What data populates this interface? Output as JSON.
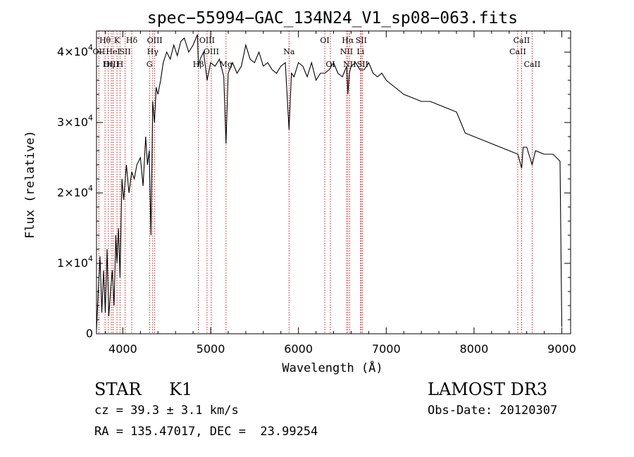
{
  "chart_data": {
    "type": "line",
    "title": "spec−55994−GAC_134N24_V1_sp08−063.fits",
    "xlabel": "Wavelength (Å)",
    "ylabel": "Flux (relative)",
    "xlim": [
      3700,
      9100
    ],
    "ylim": [
      0,
      43000
    ],
    "x_ticks": [
      {
        "value": 4000,
        "label": "4000"
      },
      {
        "value": 5000,
        "label": "5000"
      },
      {
        "value": 6000,
        "label": "6000"
      },
      {
        "value": 7000,
        "label": "7000"
      },
      {
        "value": 8000,
        "label": "8000"
      },
      {
        "value": 9000,
        "label": "9000"
      }
    ],
    "y_ticks": [
      {
        "value": 0,
        "mant": "0",
        "exp": ""
      },
      {
        "value": 10000,
        "mant": "1×10",
        "exp": "4"
      },
      {
        "value": 20000,
        "mant": "2×10",
        "exp": "4"
      },
      {
        "value": 30000,
        "mant": "3×10",
        "exp": "4"
      },
      {
        "value": 40000,
        "mant": "4×10",
        "exp": "4"
      }
    ],
    "series": [
      {
        "name": "flux",
        "x": [
          3700,
          3720,
          3740,
          3760,
          3780,
          3800,
          3820,
          3840,
          3860,
          3880,
          3900,
          3920,
          3933,
          3950,
          3968,
          3990,
          4010,
          4040,
          4070,
          4101,
          4130,
          4160,
          4200,
          4230,
          4260,
          4280,
          4300,
          4320,
          4340,
          4360,
          4380,
          4400,
          4430,
          4460,
          4500,
          4540,
          4580,
          4620,
          4660,
          4700,
          4750,
          4800,
          4850,
          4861,
          4880,
          4920,
          4960,
          5000,
          5050,
          5100,
          5150,
          5175,
          5200,
          5250,
          5300,
          5350,
          5400,
          5450,
          5500,
          5550,
          5600,
          5650,
          5700,
          5750,
          5800,
          5850,
          5893,
          5920,
          5950,
          6000,
          6050,
          6100,
          6150,
          6200,
          6250,
          6300,
          6350,
          6400,
          6450,
          6500,
          6550,
          6563,
          6580,
          6600,
          6650,
          6700,
          6750,
          6800,
          6850,
          6900,
          6950,
          7000,
          7050,
          7100,
          7150,
          7200,
          7300,
          7400,
          7500,
          7600,
          7700,
          7800,
          7850,
          7900,
          8000,
          8100,
          8200,
          8300,
          8400,
          8500,
          8542,
          8560,
          8600,
          8662,
          8700,
          8800,
          8900,
          8980,
          9000
        ],
        "y": [
          500,
          6000,
          11000,
          3000,
          9000,
          3000,
          12000,
          2500,
          6000,
          9000,
          4000,
          14000,
          10000,
          15000,
          8000,
          22000,
          19000,
          24000,
          20000,
          23000,
          22000,
          24000,
          25000,
          21000,
          28000,
          24000,
          26000,
          14000,
          33000,
          30000,
          35000,
          34000,
          36000,
          38500,
          40000,
          39000,
          41000,
          39500,
          41500,
          42000,
          40000,
          41000,
          42500,
          38000,
          39000,
          40000,
          36000,
          38500,
          38000,
          39000,
          36500,
          27000,
          37000,
          38500,
          37000,
          38000,
          41000,
          39000,
          38500,
          40000,
          38000,
          38500,
          37500,
          37000,
          38000,
          38500,
          29000,
          37000,
          36500,
          38500,
          38000,
          36500,
          38500,
          36000,
          37000,
          37000,
          37500,
          38500,
          37000,
          36500,
          38000,
          34000,
          37000,
          38000,
          38500,
          37500,
          37500,
          38500,
          37000,
          36500,
          37000,
          36000,
          35500,
          35000,
          34500,
          34000,
          33500,
          33000,
          33000,
          32500,
          32000,
          31500,
          30000,
          28500,
          28000,
          27500,
          27000,
          26500,
          26000,
          25500,
          23500,
          26500,
          26500,
          24000,
          26000,
          25500,
          25500,
          24500,
          1000
        ]
      }
    ],
    "lines": [
      {
        "x": 3797,
        "label": "Hθ",
        "row": 1
      },
      {
        "x": 3727,
        "label": "OII",
        "row": 2
      },
      {
        "x": 3835,
        "label": "Hη",
        "row": 3
      },
      {
        "x": 3869,
        "label": "OIII",
        "row": 3
      },
      {
        "x": 3889,
        "label": "HeI",
        "row": 2
      },
      {
        "x": 3933,
        "label": "K",
        "row": 1
      },
      {
        "x": 3968,
        "label": "H",
        "row": 3
      },
      {
        "x": 4026,
        "label": "SII",
        "row": 2
      },
      {
        "x": 4101,
        "label": "Hδ",
        "row": 1
      },
      {
        "x": 4304,
        "label": "G",
        "row": 3
      },
      {
        "x": 4340,
        "label": "Hγ",
        "row": 2
      },
      {
        "x": 4363,
        "label": "OIII",
        "row": 1
      },
      {
        "x": 4861,
        "label": "Hβ",
        "row": 3
      },
      {
        "x": 4959,
        "label": "OIII",
        "row": 1
      },
      {
        "x": 5007,
        "label": "OIII",
        "row": 2
      },
      {
        "x": 5175,
        "label": "Mg",
        "row": 3
      },
      {
        "x": 5893,
        "label": "Na",
        "row": 2
      },
      {
        "x": 6300,
        "label": "OI",
        "row": 1
      },
      {
        "x": 6364,
        "label": "OI",
        "row": 3
      },
      {
        "x": 6548,
        "label": "NII",
        "row": 2
      },
      {
        "x": 6563,
        "label": "Hα",
        "row": 1
      },
      {
        "x": 6583,
        "label": "NII",
        "row": 3
      },
      {
        "x": 6707,
        "label": "Li",
        "row": 2
      },
      {
        "x": 6716,
        "label": "SII",
        "row": 1
      },
      {
        "x": 6731,
        "label": "SII",
        "row": 3
      },
      {
        "x": 8498,
        "label": "CaII",
        "row": 2
      },
      {
        "x": 8542,
        "label": "CaII",
        "row": 1
      },
      {
        "x": 8662,
        "label": "CaII",
        "row": 3
      }
    ]
  },
  "info": {
    "object_class": "STAR",
    "subclass": "K1",
    "survey": "LAMOST DR3",
    "redshift": "cz = 39.3 ± 3.1 km/s",
    "obs_date": "Obs-Date: 20120307",
    "coords": "RA = 135.47017, DEC =  23.99254"
  }
}
